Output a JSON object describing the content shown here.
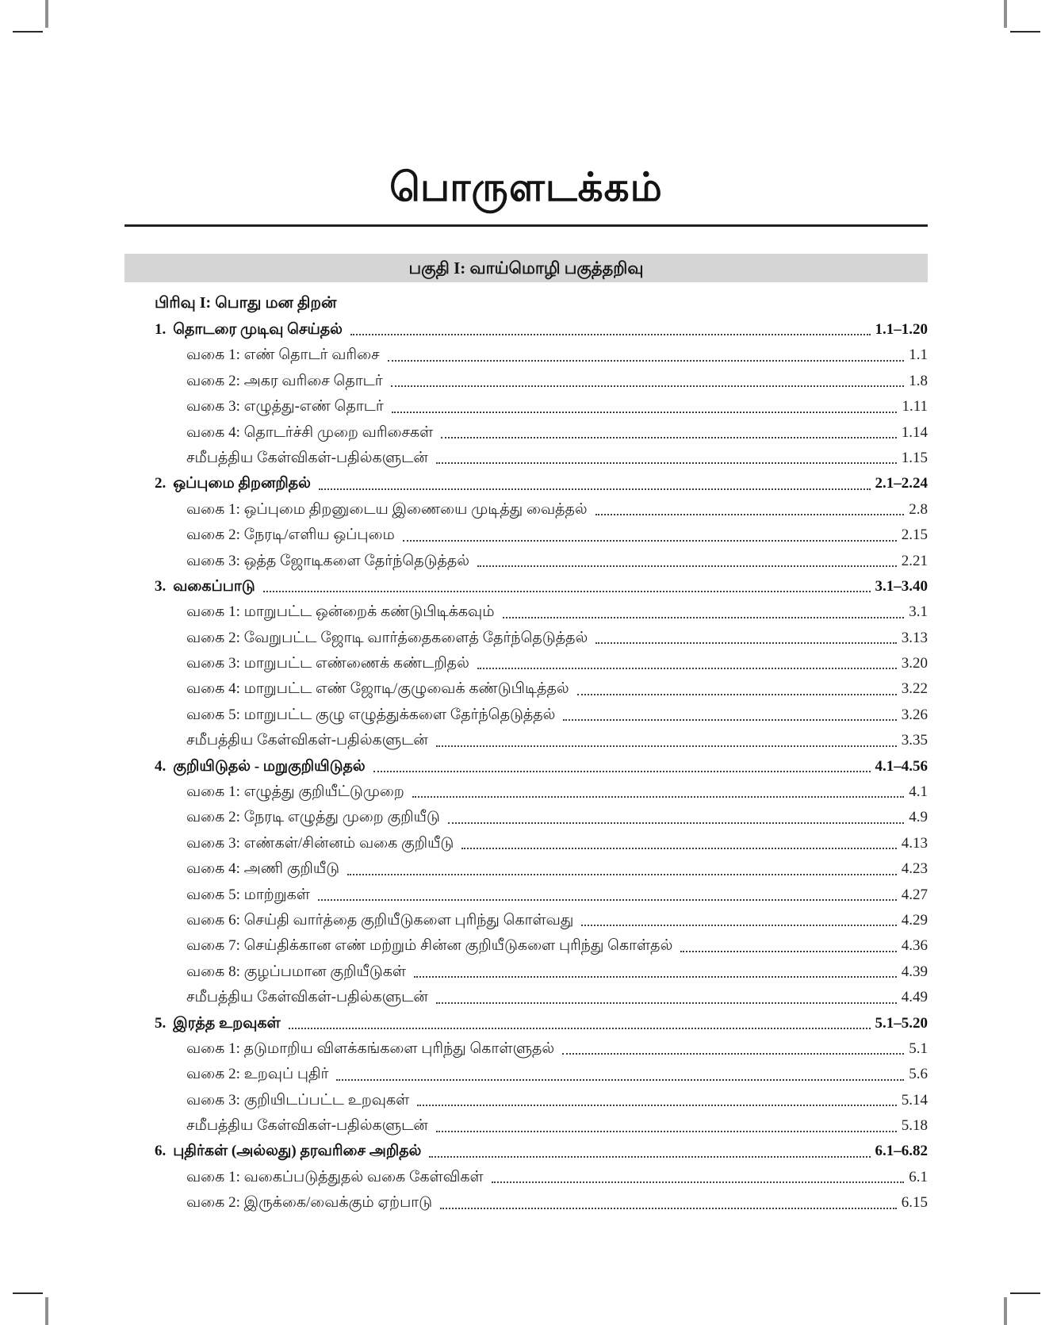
{
  "page": {
    "title": "பொருளடக்கம்",
    "part_banner": "பகுதி I: வாய்மொழி பகுத்தறிவு",
    "section_header": "பிரிவு I: பொது மன திறன்"
  },
  "toc": {
    "chapters": [
      {
        "number": "1.",
        "title": "தொடரை முடிவு செய்தல்",
        "pages": "1.1–1.20",
        "items": [
          {
            "label": "வகை 1: எண் தொடர் வரிசை",
            "page": "1.1"
          },
          {
            "label": "வகை 2: அகர வரிசை தொடர்",
            "page": "1.8"
          },
          {
            "label": "வகை 3: எழுத்து-எண் தொடர்",
            "page": "1.11"
          },
          {
            "label": "வகை 4: தொடர்ச்சி முறை வரிசைகள்",
            "page": "1.14"
          },
          {
            "label": "சமீபத்திய கேள்விகள்-பதில்களுடன்",
            "page": "1.15"
          }
        ]
      },
      {
        "number": "2.",
        "title": "ஒப்புமை திறனறிதல்",
        "pages": "2.1–2.24",
        "items": [
          {
            "label": "வகை 1: ஒப்புமை திறனுடைய இணையை முடித்து வைத்தல்",
            "page": "2.8"
          },
          {
            "label": "வகை 2: நேரடி/எளிய ஒப்புமை",
            "page": "2.15"
          },
          {
            "label": "வகை 3: ஒத்த ஜோடிகளை தேர்ந்தெடுத்தல்",
            "page": "2.21"
          }
        ]
      },
      {
        "number": "3.",
        "title": "வகைப்பாடு",
        "pages": "3.1–3.40",
        "items": [
          {
            "label": "வகை 1: மாறுபட்ட ஒன்றைக் கண்டுபிடிக்கவும்",
            "page": "3.1"
          },
          {
            "label": "வகை 2: வேறுபட்ட ஜோடி வார்த்தைகளைத் தேர்ந்தெடுத்தல்",
            "page": "3.13"
          },
          {
            "label": "வகை 3: மாறுபட்ட எண்ணைக் கண்டறிதல்",
            "page": "3.20"
          },
          {
            "label": "வகை 4: மாறுபட்ட எண் ஜோடி/குழுவைக் கண்டுபிடித்தல்",
            "page": "3.22"
          },
          {
            "label": "வகை 5: மாறுபட்ட குழு எழுத்துக்களை தேர்ந்தெடுத்தல்",
            "page": "3.26"
          },
          {
            "label": "சமீபத்திய கேள்விகள்-பதில்களுடன்",
            "page": "3.35"
          }
        ]
      },
      {
        "number": "4.",
        "title": "குறியிடுதல் - மறுகுறியிடுதல்",
        "pages": "4.1–4.56",
        "items": [
          {
            "label": "வகை 1: எழுத்து குறியீட்டுமுறை",
            "page": "4.1"
          },
          {
            "label": "வகை 2: நேரடி எழுத்து முறை குறியீடு",
            "page": "4.9"
          },
          {
            "label": "வகை 3: எண்கள்/சின்னம் வகை குறியீடு",
            "page": "4.13"
          },
          {
            "label": "வகை 4: அணி குறியீடு",
            "page": "4.23"
          },
          {
            "label": "வகை 5: மாற்றுகள்",
            "page": "4.27"
          },
          {
            "label": "வகை 6: செய்தி வார்த்தை குறியீடுகளை புரிந்து கொள்வது",
            "page": "4.29"
          },
          {
            "label": "வகை 7: செய்திக்கான எண் மற்றும் சின்ன குறியீடுகளை புரிந்து கொள்தல்",
            "page": "4.36"
          },
          {
            "label": "வகை 8: குழப்பமான குறியீடுகள்",
            "page": "4.39"
          },
          {
            "label": "சமீபத்திய கேள்விகள்-பதில்களுடன்",
            "page": "4.49"
          }
        ]
      },
      {
        "number": "5.",
        "title": "இரத்த உறவுகள்",
        "pages": "5.1–5.20",
        "items": [
          {
            "label": "வகை 1: தடுமாறிய விளக்கங்களை புரிந்து கொள்ளுதல்",
            "page": "5.1"
          },
          {
            "label": "வகை 2: உறவுப் புதிர்",
            "page": "5.6"
          },
          {
            "label": "வகை 3: குறியிடப்பட்ட உறவுகள்",
            "page": "5.14"
          },
          {
            "label": "சமீபத்திய கேள்விகள்-பதில்களுடன்",
            "page": "5.18"
          }
        ]
      },
      {
        "number": "6.",
        "title": "புதிர்கள் (அல்லது) தரவரிசை அறிதல்",
        "pages": "6.1–6.82",
        "items": [
          {
            "label": "வகை 1: வகைப்படுத்துதல் வகை கேள்விகள்",
            "page": "6.1"
          },
          {
            "label": "வகை 2: இருக்கை/வைக்கும் ஏற்பாடு",
            "page": "6.15"
          }
        ]
      }
    ]
  }
}
